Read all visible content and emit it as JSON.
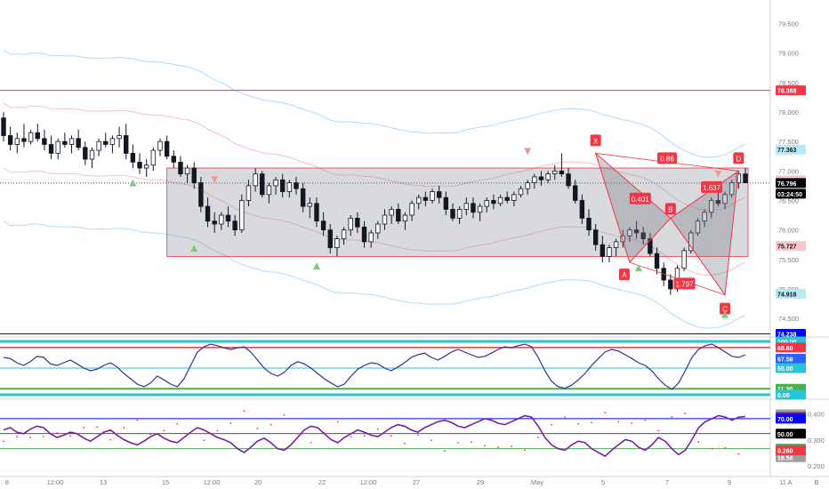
{
  "chart_data": {
    "type": "candlestick",
    "main_panel": {
      "ylim": [
        74.2,
        79.9
      ],
      "y_ticks": [
        "79.500",
        "79.000",
        "78.500",
        "78.000",
        "77.500",
        "77.000",
        "76.500",
        "76.000",
        "75.500",
        "75.000",
        "74.500"
      ],
      "y_tick_values": [
        79.5,
        79.0,
        78.5,
        78.0,
        77.5,
        77.0,
        76.5,
        76.0,
        75.5,
        75.0,
        74.5
      ],
      "x_ticks": [
        "8",
        "12:00",
        "13",
        "15",
        "12:00",
        "20",
        "22",
        "12:00",
        "27",
        "29",
        "May",
        "5",
        "7",
        "9",
        "11"
      ],
      "x_tick_positions": [
        8,
        62,
        116,
        186,
        238,
        290,
        362,
        414,
        468,
        540,
        604,
        678,
        750,
        820,
        880
      ],
      "candles": [
        [
          77.9,
          78.0,
          77.5,
          77.6
        ],
        [
          77.6,
          77.75,
          77.35,
          77.45
        ],
        [
          77.45,
          77.65,
          77.3,
          77.55
        ],
        [
          77.55,
          77.8,
          77.4,
          77.5
        ],
        [
          77.5,
          77.7,
          77.45,
          77.65
        ],
        [
          77.65,
          77.8,
          77.5,
          77.55
        ],
        [
          77.55,
          77.7,
          77.35,
          77.45
        ],
        [
          77.45,
          77.6,
          77.2,
          77.3
        ],
        [
          77.3,
          77.55,
          77.2,
          77.5
        ],
        [
          77.5,
          77.65,
          77.4,
          77.45
        ],
        [
          77.45,
          77.6,
          77.3,
          77.55
        ],
        [
          77.55,
          77.7,
          77.35,
          77.4
        ],
        [
          77.4,
          77.5,
          77.1,
          77.2
        ],
        [
          77.2,
          77.4,
          77.05,
          77.35
        ],
        [
          77.35,
          77.55,
          77.25,
          77.5
        ],
        [
          77.5,
          77.65,
          77.4,
          77.45
        ],
        [
          77.45,
          77.6,
          77.3,
          77.55
        ],
        [
          77.55,
          77.75,
          77.4,
          77.6
        ],
        [
          77.6,
          77.8,
          77.2,
          77.3
        ],
        [
          77.3,
          77.45,
          77.05,
          77.15
        ],
        [
          77.15,
          77.3,
          76.95,
          77.05
        ],
        [
          77.05,
          77.2,
          76.9,
          77.1
        ],
        [
          77.1,
          77.4,
          77.0,
          77.35
        ],
        [
          77.35,
          77.55,
          77.25,
          77.5
        ],
        [
          77.5,
          77.6,
          77.2,
          77.25
        ],
        [
          77.25,
          77.35,
          77.05,
          77.15
        ],
        [
          77.15,
          77.25,
          76.9,
          76.95
        ],
        [
          76.95,
          77.1,
          76.8,
          77.05
        ],
        [
          77.05,
          77.15,
          76.7,
          76.8
        ],
        [
          76.8,
          76.9,
          76.3,
          76.4
        ],
        [
          76.4,
          76.55,
          76.05,
          76.15
        ],
        [
          76.15,
          76.3,
          75.95,
          76.1
        ],
        [
          76.1,
          76.3,
          76.0,
          76.25
        ],
        [
          76.25,
          76.4,
          76.05,
          76.15
        ],
        [
          76.15,
          76.25,
          75.9,
          76.0
        ],
        [
          76.0,
          76.6,
          75.95,
          76.5
        ],
        [
          76.5,
          76.85,
          76.4,
          76.75
        ],
        [
          76.75,
          77.05,
          76.65,
          76.95
        ],
        [
          76.95,
          77.0,
          76.55,
          76.6
        ],
        [
          76.6,
          76.8,
          76.45,
          76.75
        ],
        [
          76.75,
          76.9,
          76.6,
          76.85
        ],
        [
          76.85,
          76.95,
          76.55,
          76.65
        ],
        [
          76.65,
          76.85,
          76.55,
          76.8
        ],
        [
          76.8,
          76.9,
          76.6,
          76.7
        ],
        [
          76.7,
          76.8,
          76.3,
          76.4
        ],
        [
          76.4,
          76.55,
          76.2,
          76.45
        ],
        [
          76.45,
          76.55,
          76.05,
          76.15
        ],
        [
          76.15,
          76.3,
          75.9,
          76.0
        ],
        [
          76.0,
          76.1,
          75.6,
          75.7
        ],
        [
          75.7,
          75.9,
          75.55,
          75.85
        ],
        [
          75.85,
          76.05,
          75.75,
          76.0
        ],
        [
          76.0,
          76.25,
          75.9,
          76.2
        ],
        [
          76.2,
          76.3,
          75.95,
          76.05
        ],
        [
          76.05,
          76.15,
          75.7,
          75.8
        ],
        [
          75.8,
          76.0,
          75.7,
          75.95
        ],
        [
          75.95,
          76.15,
          75.85,
          76.1
        ],
        [
          76.1,
          76.35,
          76.0,
          76.25
        ],
        [
          76.25,
          76.4,
          76.1,
          76.35
        ],
        [
          76.35,
          76.45,
          76.1,
          76.15
        ],
        [
          76.15,
          76.3,
          76.0,
          76.25
        ],
        [
          76.25,
          76.5,
          76.15,
          76.45
        ],
        [
          76.45,
          76.6,
          76.35,
          76.55
        ],
        [
          76.55,
          76.65,
          76.4,
          76.5
        ],
        [
          76.5,
          76.7,
          76.45,
          76.65
        ],
        [
          76.65,
          76.75,
          76.45,
          76.55
        ],
        [
          76.55,
          76.65,
          76.25,
          76.35
        ],
        [
          76.35,
          76.45,
          76.15,
          76.2
        ],
        [
          76.2,
          76.4,
          76.1,
          76.35
        ],
        [
          76.35,
          76.55,
          76.25,
          76.45
        ],
        [
          76.45,
          76.55,
          76.2,
          76.3
        ],
        [
          76.3,
          76.45,
          76.15,
          76.4
        ],
        [
          76.4,
          76.55,
          76.3,
          76.5
        ],
        [
          76.5,
          76.6,
          76.35,
          76.45
        ],
        [
          76.45,
          76.6,
          76.4,
          76.55
        ],
        [
          76.55,
          76.65,
          76.45,
          76.5
        ],
        [
          76.5,
          76.65,
          76.4,
          76.6
        ],
        [
          76.6,
          76.75,
          76.55,
          76.7
        ],
        [
          76.7,
          76.85,
          76.6,
          76.8
        ],
        [
          76.8,
          76.95,
          76.7,
          76.9
        ],
        [
          76.9,
          77.0,
          76.75,
          76.85
        ],
        [
          76.85,
          77.0,
          76.8,
          76.95
        ],
        [
          76.95,
          77.1,
          76.85,
          77.0
        ],
        [
          77.0,
          77.3,
          76.9,
          76.95
        ],
        [
          76.95,
          77.05,
          76.7,
          76.75
        ],
        [
          76.75,
          76.85,
          76.45,
          76.5
        ],
        [
          76.5,
          76.6,
          76.1,
          76.2
        ],
        [
          76.2,
          76.35,
          75.9,
          76.0
        ],
        [
          76.0,
          76.1,
          75.65,
          75.75
        ],
        [
          75.75,
          75.9,
          75.45,
          75.55
        ],
        [
          75.55,
          75.75,
          75.45,
          75.7
        ],
        [
          75.7,
          75.85,
          75.55,
          75.8
        ],
        [
          75.8,
          76.0,
          75.7,
          75.9
        ],
        [
          75.9,
          76.05,
          75.8,
          76.0
        ],
        [
          76.0,
          76.15,
          75.85,
          75.95
        ],
        [
          75.95,
          76.05,
          75.75,
          75.85
        ],
        [
          75.85,
          75.95,
          75.55,
          75.6
        ],
        [
          75.6,
          75.7,
          75.25,
          75.35
        ],
        [
          75.35,
          75.45,
          75.05,
          75.15
        ],
        [
          75.15,
          75.25,
          74.9,
          75.0
        ],
        [
          75.0,
          75.4,
          74.95,
          75.35
        ],
        [
          75.35,
          75.7,
          75.3,
          75.65
        ],
        [
          75.65,
          76.0,
          75.6,
          75.95
        ],
        [
          75.95,
          76.2,
          75.9,
          76.15
        ],
        [
          76.15,
          76.35,
          76.05,
          76.3
        ],
        [
          76.3,
          76.55,
          76.2,
          76.5
        ],
        [
          76.5,
          76.7,
          76.4,
          76.45
        ],
        [
          76.45,
          76.65,
          76.35,
          76.6
        ],
        [
          76.6,
          76.85,
          76.55,
          76.8
        ],
        [
          76.8,
          77.0,
          76.7,
          76.95
        ],
        [
          76.95,
          77.05,
          76.85,
          76.8
        ]
      ],
      "horizontal_lines": [
        {
          "value": 78.368,
          "label": "78.368",
          "color": "#f23645"
        },
        {
          "value": 74.238,
          "label": "74.238",
          "color": "#0000ff"
        }
      ],
      "price_tags": [
        {
          "value": 77.363,
          "label": "77.363",
          "bg": "#b2ebf2",
          "fg": "#131722"
        },
        {
          "value": 76.84,
          "label": "76.840",
          "bg": "#f8c7c9",
          "fg": "#131722"
        },
        {
          "value": 76.796,
          "label": "76.796",
          "bg": "#000000",
          "fg": "#ffffff"
        },
        {
          "value": 75.727,
          "label": "75.727",
          "bg": "#f8c7c9",
          "fg": "#131722"
        },
        {
          "value": 74.918,
          "label": "74.918",
          "bg": "#b2ebf2",
          "fg": "#131722"
        }
      ],
      "countdown": "03:24:50",
      "pattern_points": {
        "X": 77.3,
        "A": 75.45,
        "B": 76.2,
        "C": 74.9,
        "D": 77.0
      },
      "pattern_labels": [
        "X",
        "A",
        "B",
        "C",
        "D"
      ],
      "pattern_ratios": [
        "0.401",
        "0.86",
        "1.637",
        "1.797"
      ],
      "range_box": [
        75.55,
        77.05
      ]
    },
    "rsi_panel": {
      "tags": [
        {
          "label": "100.00",
          "bg": "#26c6da"
        },
        {
          "label": "88.60",
          "bg": "#f23645"
        },
        {
          "label": "67.58",
          "bg": "#2962ff"
        },
        {
          "label": "50.00",
          "bg": "#26c6da"
        },
        {
          "label": "11.30",
          "bg": "#4caf50"
        },
        {
          "label": "0.00",
          "bg": "#26c6da"
        }
      ],
      "values": [
        70,
        68,
        60,
        55,
        62,
        72,
        70,
        58,
        55,
        60,
        65,
        58,
        50,
        45,
        48,
        55,
        60,
        52,
        40,
        30,
        20,
        15,
        22,
        35,
        28,
        20,
        15,
        30,
        55,
        80,
        90,
        95,
        92,
        88,
        85,
        88,
        90,
        80,
        65,
        50,
        40,
        35,
        42,
        55,
        62,
        58,
        50,
        40,
        30,
        22,
        15,
        20,
        35,
        48,
        55,
        60,
        58,
        50,
        45,
        52,
        60,
        70,
        75,
        78,
        70,
        65,
        72,
        80,
        85,
        80,
        75,
        70,
        72,
        78,
        85,
        90,
        88,
        92,
        95,
        90,
        70,
        45,
        25,
        15,
        12,
        18,
        28,
        40,
        55,
        68,
        80,
        85,
        82,
        75,
        68,
        60,
        55,
        45,
        30,
        18,
        10,
        22,
        45,
        70,
        85,
        92,
        95,
        88,
        80,
        72,
        70,
        75
      ]
    },
    "osc_panel": {
      "y_ticks": [
        "0.400",
        "0.300",
        "0.200"
      ],
      "y_tick_values": [
        0.4,
        0.3,
        0.2
      ],
      "tags": [
        {
          "label": "75.82",
          "bg": "#9e9e9e"
        },
        {
          "label": "72.17",
          "bg": "#7b1fa2"
        },
        {
          "label": "70.00",
          "bg": "#0000ff"
        },
        {
          "label": "50.00",
          "bg": "#000000"
        },
        {
          "label": "30.00",
          "bg": "#4caf50"
        },
        {
          "label": "18.58",
          "bg": "#9e9e9e"
        },
        {
          "label": "0.260",
          "bg": "#f23645"
        }
      ],
      "levels": {
        "upper": 70,
        "mid": 50,
        "lower": 30
      },
      "values": [
        55,
        58,
        52,
        50,
        56,
        60,
        58,
        50,
        45,
        48,
        52,
        50,
        44,
        40,
        46,
        52,
        55,
        48,
        42,
        38,
        35,
        40,
        46,
        50,
        44,
        40,
        38,
        45,
        52,
        58,
        55,
        50,
        45,
        42,
        38,
        30,
        25,
        32,
        40,
        44,
        38,
        30,
        28,
        35,
        45,
        55,
        60,
        58,
        50,
        42,
        38,
        45,
        50,
        55,
        52,
        48,
        46,
        52,
        58,
        62,
        60,
        55,
        52,
        58,
        62,
        66,
        68,
        65,
        60,
        58,
        62,
        66,
        70,
        68,
        64,
        62,
        66,
        70,
        74,
        72,
        60,
        45,
        35,
        30,
        28,
        35,
        40,
        38,
        30,
        25,
        20,
        28,
        35,
        42,
        40,
        32,
        28,
        35,
        45,
        40,
        30,
        22,
        28,
        42,
        58,
        66,
        70,
        74,
        72,
        68,
        72,
        73
      ]
    },
    "x_tick_labels_extra": [
      "A",
      "B"
    ]
  }
}
